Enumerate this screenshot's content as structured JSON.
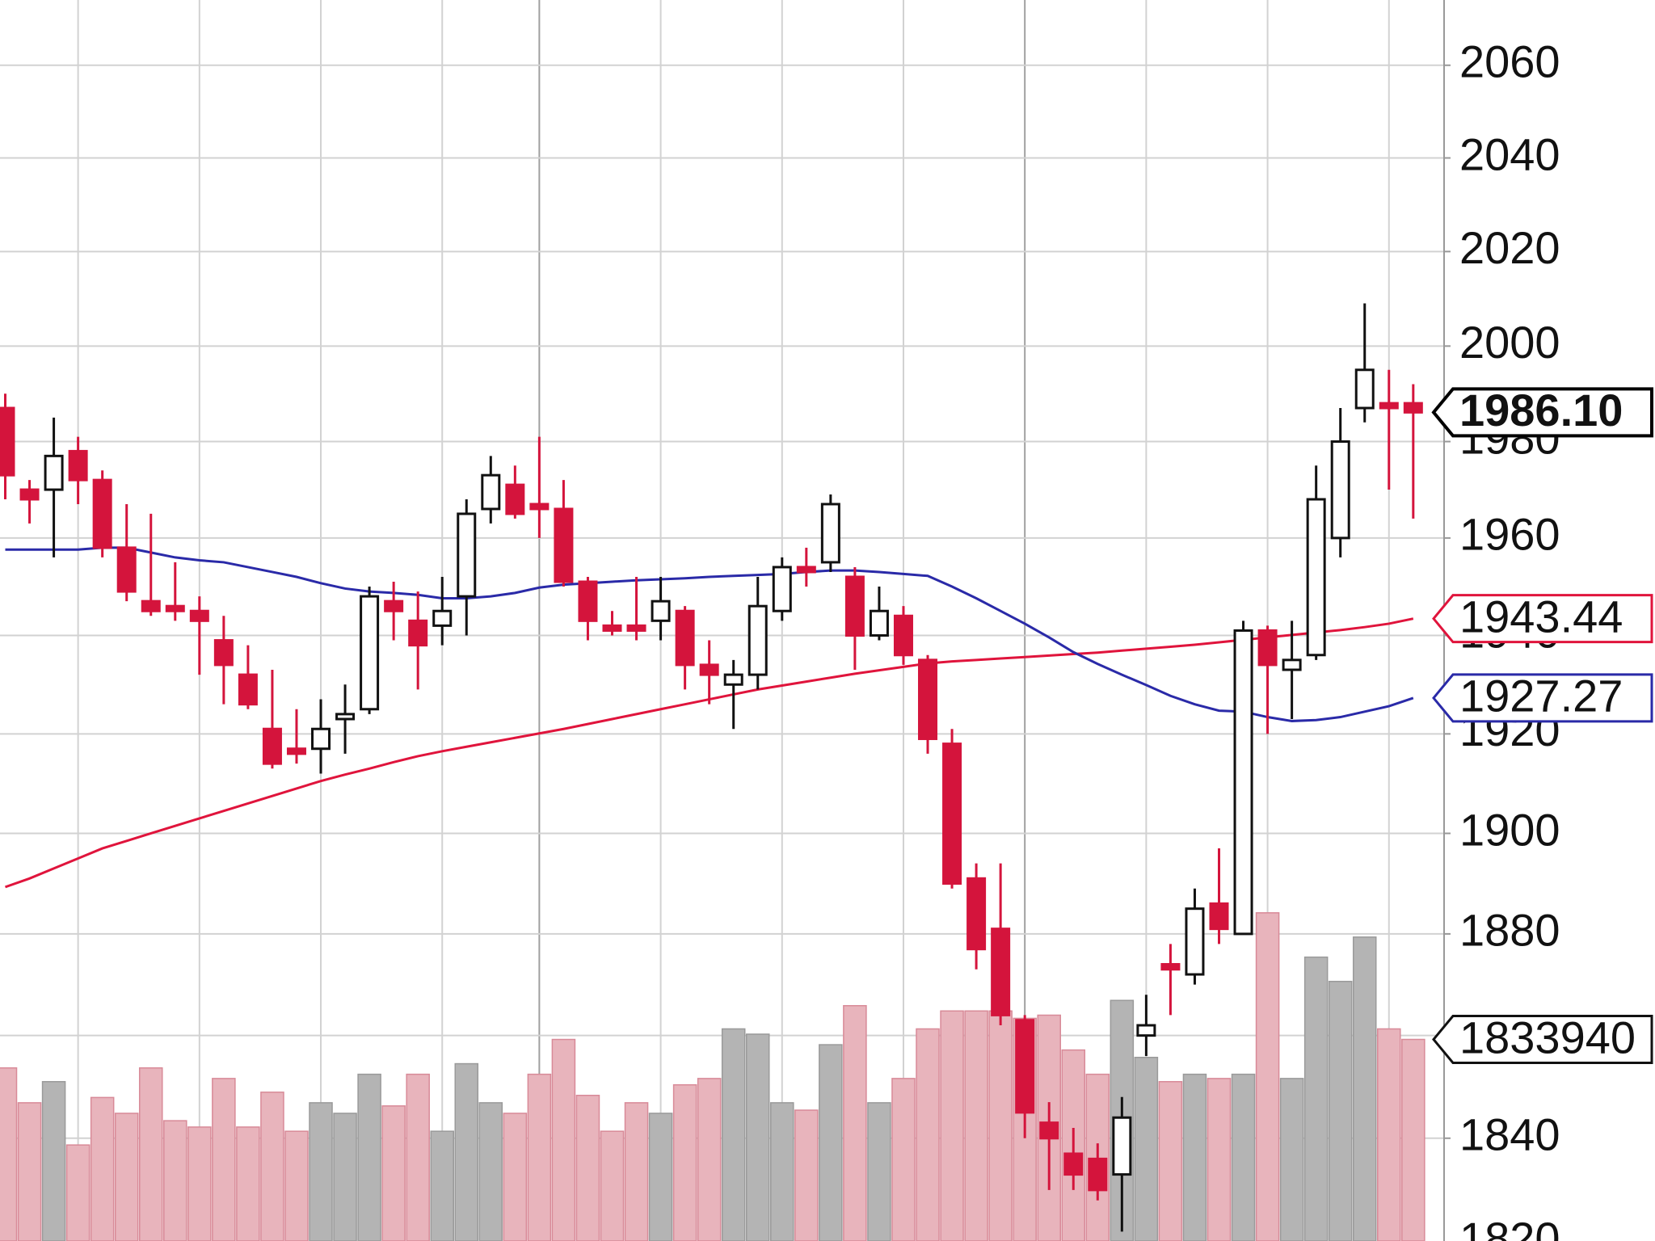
{
  "chart_data": {
    "type": "candlestick",
    "yscale": "log",
    "ylim": [
      1820.2,
      2074.2
    ],
    "yticks": [
      1820,
      1840,
      1860,
      1880,
      1900,
      1920,
      1940,
      1960,
      1980,
      2000,
      2020,
      2040,
      2060
    ],
    "grid": true,
    "up_color": "#ffffff",
    "down_color": "#d4143c",
    "open": [
      1987,
      1970,
      1970,
      1978,
      1972,
      1958,
      1947,
      1946,
      1945,
      1939,
      1932,
      1921,
      1917,
      1917,
      1923,
      1925,
      1947,
      1943,
      1942,
      1948,
      1966,
      1971,
      1967,
      1966,
      1951,
      1942,
      1942,
      1943,
      1945,
      1934,
      1930,
      1932,
      1945,
      1954,
      1955,
      1952,
      1940,
      1944,
      1935,
      1918,
      1891,
      1881,
      1863,
      1843,
      1837,
      1836,
      1833,
      1860,
      1874,
      1872,
      1886,
      1880,
      1941,
      1933,
      1936,
      1960,
      1987,
      1988,
      1988
    ],
    "high": [
      1990,
      1972,
      1985,
      1981,
      1974,
      1967,
      1965,
      1955,
      1948,
      1944,
      1938,
      1933,
      1925,
      1927,
      1930,
      1950,
      1951,
      1949,
      1952,
      1968,
      1977,
      1975,
      1981,
      1972,
      1952,
      1945,
      1952,
      1952,
      1946,
      1939,
      1935,
      1952,
      1956,
      1958,
      1969,
      1954,
      1950,
      1946,
      1936,
      1921,
      1894,
      1894,
      1864,
      1847,
      1842,
      1839,
      1848,
      1868,
      1878,
      1889,
      1897,
      1943,
      1942,
      1943,
      1975,
      1987,
      2009,
      1995,
      1992
    ],
    "low": [
      1968,
      1963,
      1956,
      1967,
      1956,
      1947,
      1944,
      1943,
      1932,
      1926,
      1925,
      1913,
      1914,
      1912,
      1916,
      1924,
      1939,
      1929,
      1938,
      1940,
      1963,
      1964,
      1960,
      1950,
      1939,
      1940,
      1939,
      1939,
      1929,
      1926,
      1921,
      1929,
      1943,
      1950,
      1953,
      1933,
      1939,
      1934,
      1916,
      1889,
      1873,
      1862,
      1840,
      1830,
      1830,
      1828,
      1822,
      1856,
      1864,
      1870,
      1878,
      1880,
      1920,
      1923,
      1935,
      1956,
      1984,
      1970,
      1964
    ],
    "close": [
      1973,
      1968,
      1977,
      1972,
      1958,
      1949,
      1945,
      1945,
      1943,
      1934,
      1926,
      1914,
      1916,
      1921,
      1924,
      1948,
      1945,
      1938,
      1945,
      1965,
      1973,
      1965,
      1966,
      1951,
      1943,
      1941,
      1941,
      1947,
      1934,
      1932,
      1932,
      1946,
      1954,
      1953,
      1967,
      1940,
      1945,
      1936,
      1919,
      1890,
      1877,
      1864,
      1845,
      1840,
      1833,
      1830,
      1844,
      1862,
      1873,
      1885,
      1881,
      1941,
      1934,
      1935,
      1968,
      1980,
      1995,
      1987,
      1986.1
    ],
    "last_price_label": "1986.10",
    "series": [
      {
        "color": "#e0143c",
        "values": [
          1889.3,
          1891,
          1893,
          1895,
          1897,
          1898.5,
          1900,
          1901.5,
          1903,
          1904.5,
          1906,
          1907.5,
          1909,
          1910.5,
          1911.8,
          1913,
          1914.3,
          1915.5,
          1916.5,
          1917.4,
          1918.3,
          1919.2,
          1920.1,
          1921,
          1922,
          1923,
          1924,
          1925,
          1926,
          1927,
          1928,
          1929,
          1929.8,
          1930.6,
          1931.4,
          1932.2,
          1932.9,
          1933.6,
          1934.3,
          1934.7,
          1935,
          1935.3,
          1935.6,
          1935.9,
          1936.2,
          1936.5,
          1936.9,
          1937.3,
          1937.7,
          1938.1,
          1938.6,
          1939.1,
          1939.6,
          1940.1,
          1940.6,
          1941.1,
          1941.7,
          1942.4,
          1943.44
        ]
      },
      {
        "color": "#2a2aa8",
        "values": [
          1957.6,
          1957.6,
          1957.6,
          1957.6,
          1958,
          1958,
          1957,
          1956,
          1955.4,
          1955,
          1954,
          1953,
          1952,
          1950.7,
          1949.6,
          1949,
          1948.7,
          1948.3,
          1947.6,
          1947.6,
          1948,
          1948.7,
          1949.8,
          1950.4,
          1950.7,
          1951,
          1951.3,
          1951.5,
          1951.7,
          1952,
          1952.2,
          1952.4,
          1952.6,
          1953,
          1953.3,
          1953.3,
          1953,
          1952.6,
          1952.2,
          1950,
          1947.6,
          1945,
          1942.4,
          1939.6,
          1936.6,
          1934.2,
          1932,
          1929.9,
          1927.7,
          1926,
          1924.7,
          1924.5,
          1923.4,
          1922.6,
          1922.8,
          1923.4,
          1924.5,
          1925.6,
          1927.27
        ]
      }
    ],
    "volume": {
      "ylim": [
        0,
        11289600
      ],
      "up_color": "#b4b4b4",
      "down_color": "#e8b4bc",
      "values": [
        1574400,
        1257600,
        1449600,
        873600,
        1305600,
        1161600,
        1574400,
        1094400,
        1036800,
        1478400,
        1036800,
        1353600,
        998400,
        1257600,
        1161600,
        1516800,
        1228800,
        1516800,
        998400,
        1612800,
        1257600,
        1161600,
        1516800,
        1833600,
        1324800,
        998400,
        1257600,
        1161600,
        1420800,
        1478400,
        1929600,
        1881600,
        1257600,
        1190400,
        1785600,
        2140800,
        1257600,
        1478400,
        1929600,
        2092800,
        2092800,
        2092800,
        2025600,
        2054400,
        1737600,
        1516800,
        2188800,
        1670400,
        1449600,
        1516800,
        1478400,
        1516800,
        2985600,
        1478400,
        2582400,
        2361600,
        2764800,
        1929600,
        1833940
      ]
    }
  }
}
